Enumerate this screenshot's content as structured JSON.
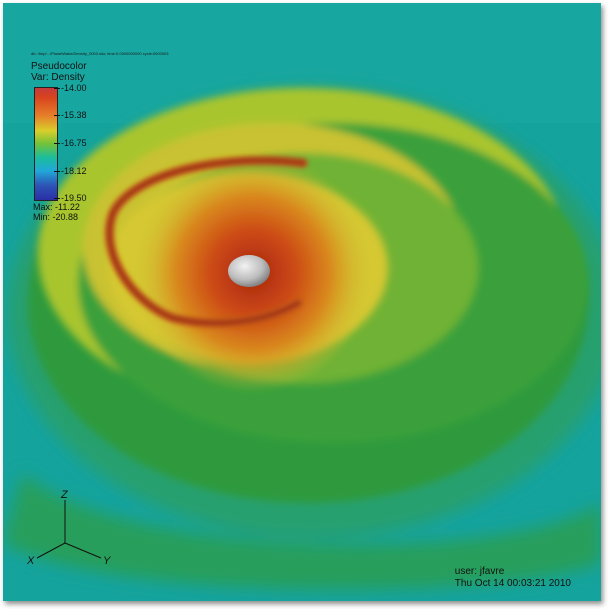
{
  "database_path": "db: /tmp/.../PlanetWake/Density_0003.silo; time:0.0000000000 cycle:0000003",
  "legend": {
    "plot_type": "Pseudocolor",
    "variable": "Var: Density",
    "ticks": [
      "-14.00",
      "-15.38",
      "-16.75",
      "-18.12",
      "-19.50"
    ],
    "max": "Max: -11.22",
    "min": "Min: -20.88"
  },
  "axes": {
    "z": "Z",
    "x": "X",
    "y": "Y"
  },
  "user_info": {
    "user": "user: jfavre",
    "timestamp": "Thu Oct 14 00:03:21 2010"
  }
}
